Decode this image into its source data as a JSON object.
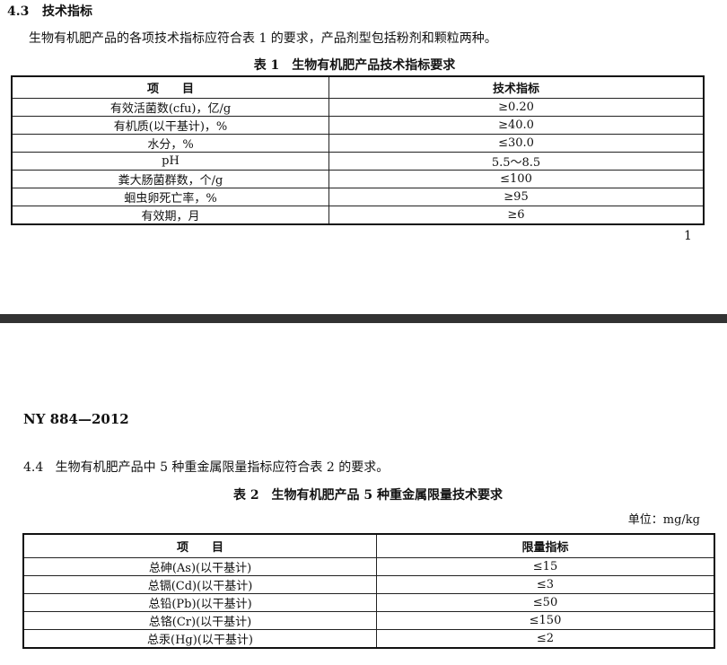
{
  "page1": {
    "section_number": "4.3",
    "section_title": "技术指标",
    "paragraph": "生物有机肥产品的各项技术指标应符合表 1 的要求，产品剂型包括粉剂和颗粒两种。",
    "table_caption": "表 1　生物有机肥产品技术指标要求",
    "table": {
      "headers": [
        "项　　目",
        "技术指标"
      ],
      "rows": [
        [
          "有效活菌数(cfu)，亿/g",
          "≥0.20"
        ],
        [
          "有机质(以干基计)，%",
          "≥40.0"
        ],
        [
          "水分，%",
          "≤30.0"
        ],
        [
          "pH",
          "5.5～8.5"
        ],
        [
          "粪大肠菌群数，个/g",
          "≤100"
        ],
        [
          "蛔虫卵死亡率，%",
          "≥95"
        ],
        [
          "有效期，月",
          "≥6"
        ]
      ]
    },
    "page_number": "1"
  },
  "page2": {
    "header": "NY 884—2012",
    "section_number": "4.4",
    "paragraph": "生物有机肥产品中 5 种重金属限量指标应符合表 2 的要求。",
    "table_caption": "表 2　生物有机肥产品 5 种重金属限量技术要求",
    "unit": "单位：mg/kg",
    "table": {
      "headers": [
        "项　　目",
        "限量指标"
      ],
      "rows": [
        [
          "总砷(As)(以干基计)",
          "≤15"
        ],
        [
          "总镉(Cd)(以干基计)",
          "≤3"
        ],
        [
          "总铅(Pb)(以干基计)",
          "≤50"
        ],
        [
          "总铬(Cr)(以干基计)",
          "≤150"
        ],
        [
          "总汞(Hg)(以干基计)",
          "≤2"
        ]
      ]
    }
  }
}
